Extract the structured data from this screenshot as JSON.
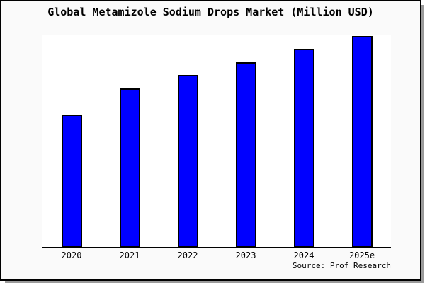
{
  "window": {
    "background": "#fafafa",
    "plot_background": "#ffffff",
    "border_color": "#000000",
    "shadow_color": "#9b9b9b"
  },
  "chart": {
    "title": "Global Metamizole Sodium Drops Market (Million USD)",
    "source": "Source: Prof Research"
  },
  "chart_data": {
    "type": "bar",
    "title": "Global Metamizole Sodium Drops Market (Million USD)",
    "categories": [
      "2020",
      "2021",
      "2022",
      "2023",
      "2024",
      "2025e"
    ],
    "values": [
      62.8,
      75.2,
      81.5,
      87.6,
      94.0,
      100.0
    ],
    "values_note": "No y-axis or data labels are shown in the chart; values are bar heights relative to the tallest bar (2025e = 100)",
    "xlabel": "",
    "ylabel": "",
    "y_axis_visible": false,
    "grid": false,
    "legend": false,
    "bar_color": "#0000ff",
    "bar_border_color": "#000000",
    "source": "Source: Prof Research"
  }
}
